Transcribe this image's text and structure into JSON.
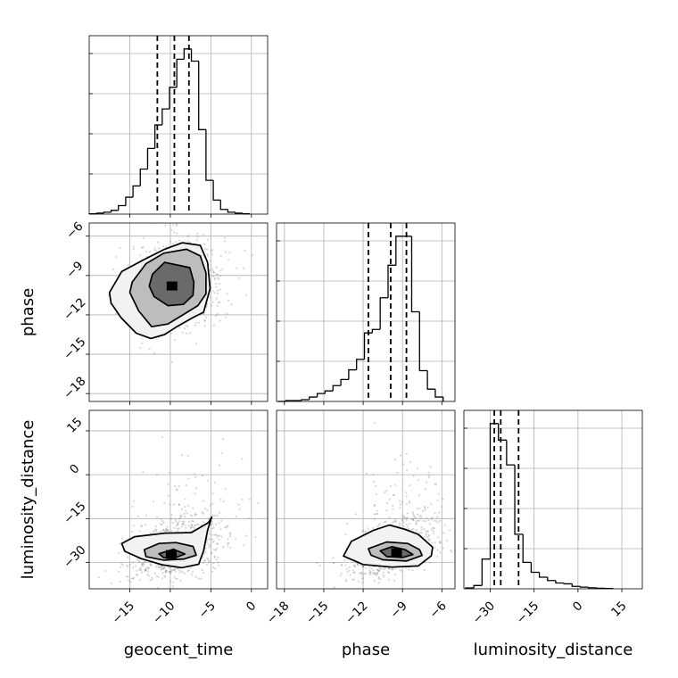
{
  "chart_data": {
    "type": "corner",
    "parameters": [
      "geocent_time",
      "phase",
      "luminosity_distance"
    ],
    "ranges": {
      "geocent_time": [
        -20,
        2
      ],
      "phase": [
        -18.6,
        -5
      ],
      "luminosity_distance": [
        -39,
        22
      ]
    },
    "ticks": {
      "geocent_time": [
        -15,
        -10,
        -5,
        0
      ],
      "phase": [
        -18,
        -15,
        -12,
        -9,
        -6
      ],
      "luminosity_distance": [
        -30,
        -15,
        0,
        15
      ]
    },
    "tick_labels": {
      "geocent_time": [
        "−15",
        "−10",
        "−5",
        "0"
      ],
      "phase": [
        "−18",
        "−15",
        "−12",
        "−9",
        "−6"
      ],
      "luminosity_distance": [
        "−30",
        "−15",
        "0",
        "15"
      ]
    },
    "axis_labels": {
      "x": [
        "geocent_time",
        "phase",
        "luminosity_distance"
      ],
      "y": [
        "phase",
        "luminosity_distance"
      ]
    },
    "grid": true,
    "histograms": [
      {
        "parameter": "geocent_time",
        "bin_edges": [
          -20,
          -19.1,
          -18.2,
          -17.3,
          -16.4,
          -15.5,
          -14.6,
          -13.7,
          -12.8,
          -11.9,
          -11,
          -10.1,
          -9.2,
          -8.3,
          -7.4,
          -6.5,
          -5.6,
          -4.7,
          -3.8,
          -2.9,
          -2,
          -1.1,
          -0.2
        ],
        "counts": [
          0.3,
          1,
          2,
          4,
          9,
          18,
          30,
          48,
          70,
          95,
          112,
          135,
          165,
          176,
          163,
          90,
          36,
          15,
          5,
          2,
          1,
          0.3
        ],
        "quantiles": [
          -11.6,
          -9.5,
          -7.7
        ]
      },
      {
        "parameter": "phase",
        "bin_edges": [
          -18.5,
          -17.9,
          -17.3,
          -16.7,
          -16.1,
          -15.5,
          -14.9,
          -14.3,
          -13.7,
          -13.1,
          -12.5,
          -11.9,
          -11.3,
          -10.7,
          -10.1,
          -9.5,
          -8.9,
          -8.3,
          -7.7,
          -7.1,
          -6.5,
          -5.9
        ],
        "counts": [
          0,
          1,
          1,
          2,
          5,
          9,
          12,
          18,
          25,
          36,
          48,
          78,
          82,
          118,
          155,
          188,
          188,
          102,
          35,
          14,
          5
        ],
        "quantiles": [
          -11.6,
          -9.9,
          -8.7
        ]
      },
      {
        "parameter": "luminosity_distance",
        "bin_edges": [
          -38.4,
          -35.6,
          -32.8,
          -30,
          -27.2,
          -24.4,
          -21.6,
          -18.8,
          -16,
          -13.2,
          -10.4,
          -7.6,
          -4.8,
          -2,
          0.8,
          3.6,
          6.4,
          9.2,
          12
        ],
        "counts": [
          0.5,
          2,
          18,
          100,
          90,
          75,
          33,
          16,
          10,
          7,
          5,
          3.5,
          3,
          1.5,
          1,
          0.6,
          0.3,
          0.2
        ],
        "quantiles": [
          -28.6,
          -26.4,
          -20.3
        ]
      }
    ],
    "pairs": [
      {
        "x": "geocent_time",
        "y": "phase",
        "center": [
          -9.2,
          -9.7
        ],
        "spread": [
          2.9,
          1.8
        ],
        "correlation": 0.15,
        "contour_levels": [
          [
            [
              -12.2,
              -8.9
            ],
            [
              -10.7,
              -8.0
            ],
            [
              -7.6,
              -8.4
            ],
            [
              -7.1,
              -9.5
            ],
            [
              -7.2,
              -10.5
            ],
            [
              -8.4,
              -11.2
            ],
            [
              -10.3,
              -11.3
            ],
            [
              -12.0,
              -10.6
            ],
            [
              -12.6,
              -9.8
            ]
          ],
          [
            [
              -14.7,
              -9.5
            ],
            [
              -13.0,
              -8.1
            ],
            [
              -10.8,
              -7.3
            ],
            [
              -8.0,
              -7.0
            ],
            [
              -6.3,
              -7.5
            ],
            [
              -5.6,
              -8.8
            ],
            [
              -5.6,
              -10.4
            ],
            [
              -6.6,
              -11.3
            ],
            [
              -8.7,
              -12.1
            ],
            [
              -10.3,
              -12.7
            ],
            [
              -12.3,
              -12.9
            ],
            [
              -13.9,
              -11.7
            ],
            [
              -15.0,
              -10.3
            ]
          ],
          [
            [
              -17.5,
              -10.3
            ],
            [
              -16.0,
              -8.7
            ],
            [
              -13.3,
              -7.8
            ],
            [
              -10.7,
              -7.0
            ],
            [
              -8.5,
              -6.5
            ],
            [
              -6.3,
              -6.7
            ],
            [
              -5.4,
              -8.0
            ],
            [
              -5.1,
              -10.0
            ],
            [
              -5.9,
              -11.8
            ],
            [
              -7.2,
              -12.2
            ],
            [
              -9.2,
              -12.9
            ],
            [
              -10.7,
              -13.5
            ],
            [
              -12.4,
              -13.8
            ],
            [
              -14.2,
              -13.4
            ],
            [
              -16.1,
              -12.2
            ],
            [
              -17.3,
              -11.1
            ]
          ]
        ]
      },
      {
        "x": "geocent_time",
        "y": "luminosity_distance",
        "center": [
          -9.4,
          -26
        ],
        "spread": [
          2.9,
          4.6
        ],
        "correlation": 0.35,
        "contour_levels": [
          [
            [
              -11.4,
              -27.0
            ],
            [
              -9.6,
              -25.5
            ],
            [
              -8.2,
              -27.1
            ],
            [
              -9.4,
              -28.4
            ],
            [
              -10.8,
              -28.4
            ]
          ],
          [
            [
              -13.2,
              -25.6
            ],
            [
              -11.4,
              -23.5
            ],
            [
              -9.3,
              -23.2
            ],
            [
              -7.2,
              -24.5
            ],
            [
              -6.8,
              -27.5
            ],
            [
              -8.3,
              -28.8
            ],
            [
              -10.8,
              -29.2
            ],
            [
              -13.0,
              -28.0
            ]
          ],
          [
            [
              -16.0,
              -23.5
            ],
            [
              -14.4,
              -21.2
            ],
            [
              -10.7,
              -20.0
            ],
            [
              -7.4,
              -19.8
            ],
            [
              -5.3,
              -16.4
            ],
            [
              -4.9,
              -14.5
            ],
            [
              -5.4,
              -19.0
            ],
            [
              -5.9,
              -26.0
            ],
            [
              -6.5,
              -30.6
            ],
            [
              -8.6,
              -31.8
            ],
            [
              -11.0,
              -30.8
            ],
            [
              -13.6,
              -28.7
            ],
            [
              -15.6,
              -26.2
            ]
          ]
        ]
      },
      {
        "x": "phase",
        "y": "luminosity_distance",
        "center": [
          -9.8,
          -26
        ],
        "spread": [
          1.6,
          4.6
        ],
        "correlation": 0.45,
        "contour_levels": [
          [
            [
              -10.7,
              -26.0
            ],
            [
              -9.8,
              -24.6
            ],
            [
              -8.8,
              -25.6
            ],
            [
              -8.2,
              -27.3
            ],
            [
              -9.0,
              -28.3
            ],
            [
              -10.2,
              -28.0
            ]
          ],
          [
            [
              -11.6,
              -25.3
            ],
            [
              -10.2,
              -23.0
            ],
            [
              -8.6,
              -23.5
            ],
            [
              -7.7,
              -25.6
            ],
            [
              -7.5,
              -27.6
            ],
            [
              -8.7,
              -29.5
            ],
            [
              -10.5,
              -29.1
            ],
            [
              -11.4,
              -27.5
            ]
          ],
          [
            [
              -13.5,
              -27.8
            ],
            [
              -12.9,
              -22.8
            ],
            [
              -11.2,
              -19.0
            ],
            [
              -10.0,
              -17.2
            ],
            [
              -8.8,
              -18.7
            ],
            [
              -7.8,
              -20.4
            ],
            [
              -6.7,
              -24.8
            ],
            [
              -6.8,
              -27.7
            ],
            [
              -7.8,
              -31.2
            ],
            [
              -9.8,
              -31.6
            ],
            [
              -12.0,
              -30.7
            ]
          ]
        ]
      }
    ]
  }
}
